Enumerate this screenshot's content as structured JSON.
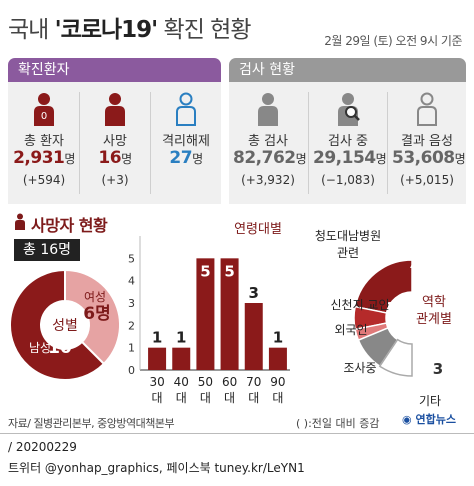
{
  "header": {
    "title_prefix": "국내 ",
    "title_highlight": "'코로나19'",
    "title_suffix": " 확진 현황",
    "date": "2월 29일 (토) 오전 9시 기준"
  },
  "confirmed": {
    "heading": "확진환자",
    "items": [
      {
        "label": "총 환자",
        "value": "2,931",
        "unit": "명",
        "delta": "(+594)",
        "color": "#8b1a1a",
        "icon": "person-icon",
        "icon_num": "0"
      },
      {
        "label": "사망",
        "value": "16",
        "unit": "명",
        "delta": "(+3)",
        "color": "#8b1a1a",
        "icon": "person-icon"
      },
      {
        "label": "격리해제",
        "value": "27",
        "unit": "명",
        "delta": "",
        "color": "#2a7fc1",
        "icon": "person-outline-icon"
      }
    ]
  },
  "tests": {
    "heading": "검사 현황",
    "items": [
      {
        "label": "총 검사",
        "value": "82,762",
        "unit": "명",
        "delta": "(+3,932)",
        "icon": "person-icon"
      },
      {
        "label": "검사 중",
        "value": "29,154",
        "unit": "명",
        "delta": "(−1,083)",
        "icon": "magnifier-person-icon"
      },
      {
        "label": "결과 음성",
        "value": "53,608",
        "unit": "명",
        "delta": "(+5,015)",
        "icon": "person-outline-icon"
      }
    ]
  },
  "deaths": {
    "title": "사망자 현황",
    "total": "총 16명"
  },
  "chart_data": [
    {
      "type": "pie",
      "title": "성별",
      "slices": [
        {
          "name": "여성",
          "value": 6,
          "label": "6명",
          "color": "#e6a3a3"
        },
        {
          "name": "남성",
          "value": 10,
          "label": "10",
          "color": "#8b1a1a"
        }
      ]
    },
    {
      "type": "bar",
      "title": "연령대별",
      "categories": [
        "30대",
        "40대",
        "50대",
        "60대",
        "70대",
        "90대"
      ],
      "values": [
        1,
        1,
        5,
        5,
        3,
        1
      ],
      "ylim": [
        0,
        6
      ],
      "yticks": [
        0,
        1,
        2,
        3,
        4,
        5
      ],
      "color": "#8b1a1a"
    },
    {
      "type": "pie",
      "title": "역학 관계별",
      "slices": [
        {
          "name": "청도대남병원 관련",
          "value": 7,
          "label": "7명",
          "color": "#8b1a1a"
        },
        {
          "name": "신천지 교인",
          "value": 2,
          "label": "2",
          "color": "#b52a2a"
        },
        {
          "name": "외국인",
          "value": 1,
          "label": "1",
          "color": "#e07a7a"
        },
        {
          "name": "조사중",
          "value": 3,
          "label": "3",
          "color": "#888888"
        },
        {
          "name": "기타",
          "value": 3,
          "label": "3",
          "color": "#ffffff"
        }
      ]
    }
  ],
  "footer": {
    "source": "자료/ 질병관리본부, 중앙방역대책본부",
    "note": "( ):전일 대비 증감",
    "brand": "연합뉴스",
    "line1": "/ 20200229",
    "line2": "트위터 @yonhap_graphics, 페이스북 tuney.kr/LeYN1"
  }
}
